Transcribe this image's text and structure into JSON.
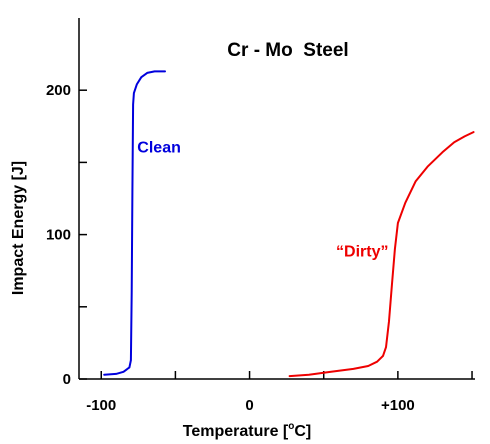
{
  "chart_data": {
    "type": "line",
    "title": "Cr - Mo  Steel",
    "xlabel": "Temperature [°C]",
    "xlabel_parts": {
      "before": "Temperature [",
      "sup": "o",
      "after": "C]"
    },
    "ylabel": "Impact Energy [J]",
    "xlim": [
      -115,
      152
    ],
    "ylim": [
      0,
      250
    ],
    "x_ticks": [
      -100,
      -50,
      0,
      50,
      100,
      150
    ],
    "x_tick_labels": [
      {
        "value": -100,
        "label": "-100"
      },
      {
        "value": 0,
        "label": "0"
      },
      {
        "value": 100,
        "label": "+100"
      }
    ],
    "y_ticks": [
      0,
      50,
      100,
      150,
      200
    ],
    "y_tick_labels": [
      {
        "value": 0,
        "label": "0"
      },
      {
        "value": 100,
        "label": "100"
      },
      {
        "value": 200,
        "label": "200"
      }
    ],
    "grid": false,
    "series": [
      {
        "name": "Clean",
        "color": "#0000dd",
        "label_at": [
          -61,
          157
        ],
        "points": [
          [
            -98,
            3
          ],
          [
            -90,
            3.5
          ],
          [
            -85,
            5
          ],
          [
            -81,
            8
          ],
          [
            -80,
            13
          ],
          [
            -79.5,
            60
          ],
          [
            -79,
            130
          ],
          [
            -78.5,
            190
          ],
          [
            -78,
            198
          ],
          [
            -76,
            204
          ],
          [
            -73,
            209
          ],
          [
            -69,
            212
          ],
          [
            -64,
            213
          ],
          [
            -57,
            213
          ]
        ]
      },
      {
        "name": "“Dirty”",
        "color": "#ee0000",
        "label_at": [
          76,
          85
        ],
        "points": [
          [
            27,
            2
          ],
          [
            40,
            3
          ],
          [
            55,
            5
          ],
          [
            70,
            7
          ],
          [
            80,
            9
          ],
          [
            86,
            12
          ],
          [
            90,
            16
          ],
          [
            92,
            22
          ],
          [
            94,
            40
          ],
          [
            96,
            65
          ],
          [
            98,
            90
          ],
          [
            100,
            108
          ],
          [
            105,
            122
          ],
          [
            112,
            137
          ],
          [
            120,
            147
          ],
          [
            130,
            157
          ],
          [
            138,
            164
          ],
          [
            145,
            168
          ],
          [
            151,
            171
          ]
        ]
      }
    ]
  }
}
